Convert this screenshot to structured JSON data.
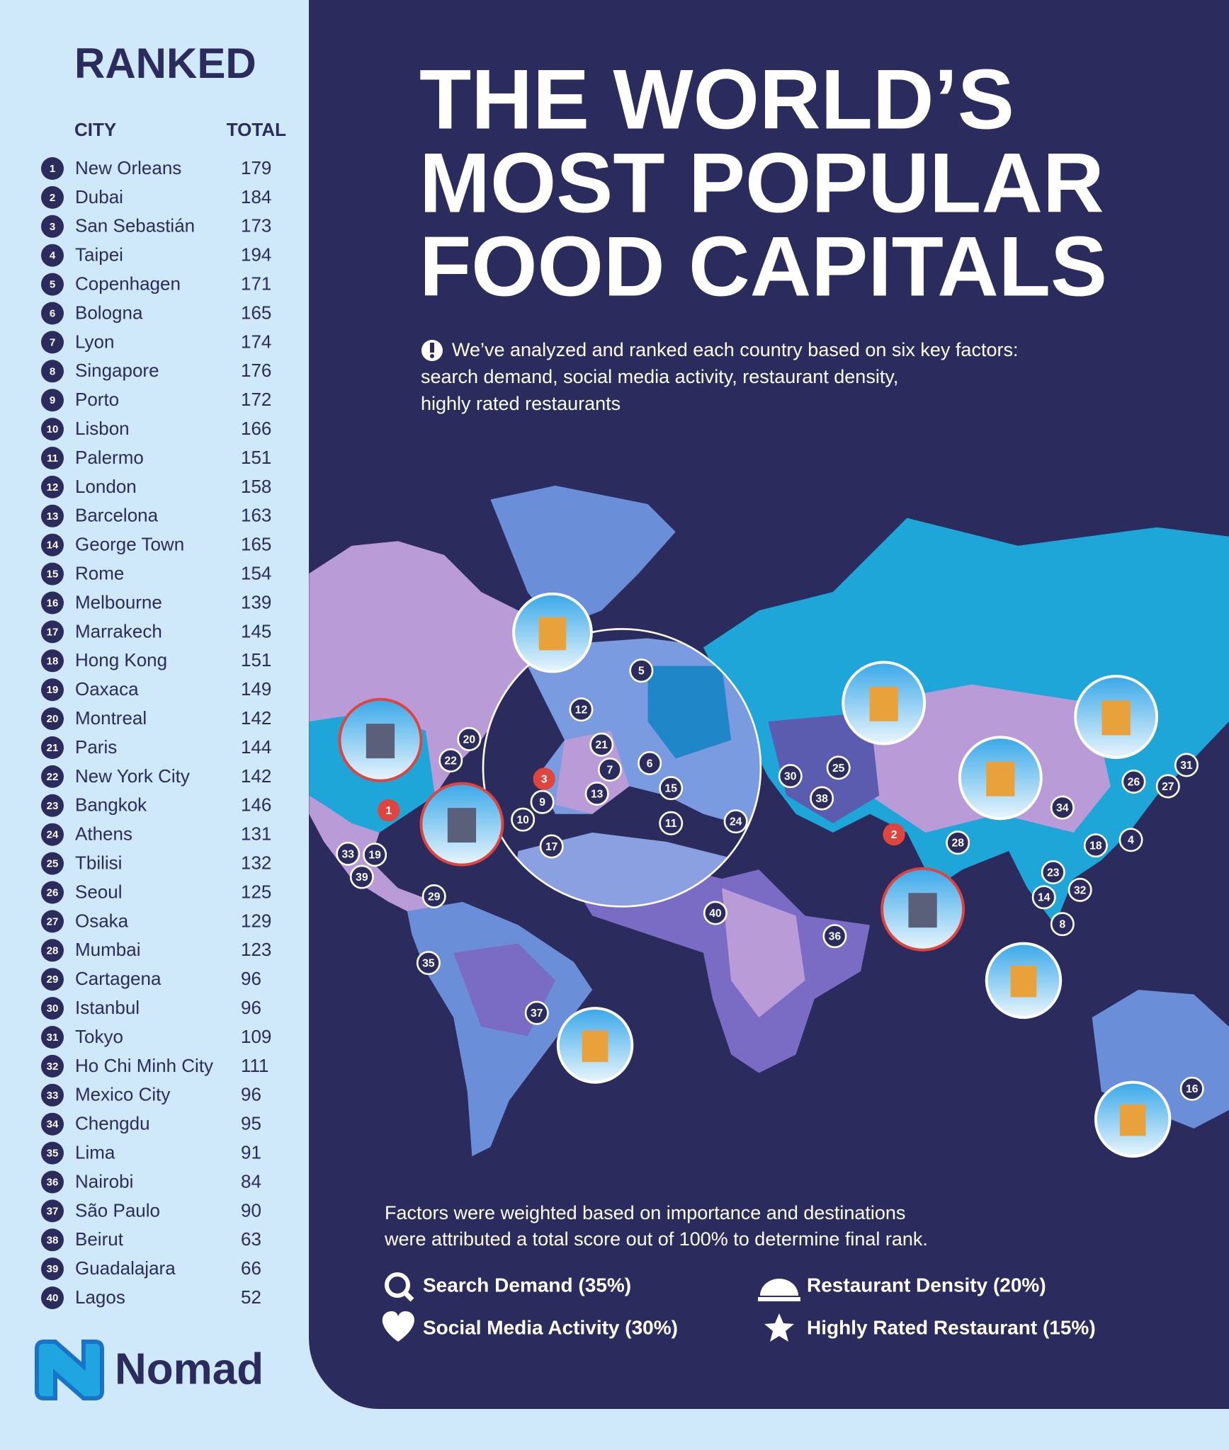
{
  "sidebar": {
    "heading": "RANKED",
    "columns": [
      "CITY",
      "TOTAL"
    ],
    "rows": [
      {
        "rank": 1,
        "city": "New Orleans",
        "total": 179
      },
      {
        "rank": 2,
        "city": "Dubai",
        "total": 184
      },
      {
        "rank": 3,
        "city": "San Sebastián",
        "total": 173
      },
      {
        "rank": 4,
        "city": "Taipei",
        "total": 194
      },
      {
        "rank": 5,
        "city": "Copenhagen",
        "total": 171
      },
      {
        "rank": 6,
        "city": "Bologna",
        "total": 165
      },
      {
        "rank": 7,
        "city": "Lyon",
        "total": 174
      },
      {
        "rank": 8,
        "city": "Singapore",
        "total": 176
      },
      {
        "rank": 9,
        "city": "Porto",
        "total": 172
      },
      {
        "rank": 10,
        "city": "Lisbon",
        "total": 166
      },
      {
        "rank": 11,
        "city": "Palermo",
        "total": 151
      },
      {
        "rank": 12,
        "city": "London",
        "total": 158
      },
      {
        "rank": 13,
        "city": "Barcelona",
        "total": 163
      },
      {
        "rank": 14,
        "city": "George Town",
        "total": 165
      },
      {
        "rank": 15,
        "city": "Rome",
        "total": 154
      },
      {
        "rank": 16,
        "city": "Melbourne",
        "total": 139
      },
      {
        "rank": 17,
        "city": "Marrakech",
        "total": 145
      },
      {
        "rank": 18,
        "city": "Hong Kong",
        "total": 151
      },
      {
        "rank": 19,
        "city": "Oaxaca",
        "total": 149
      },
      {
        "rank": 20,
        "city": "Montreal",
        "total": 142
      },
      {
        "rank": 21,
        "city": "Paris",
        "total": 144
      },
      {
        "rank": 22,
        "city": "New York City",
        "total": 142
      },
      {
        "rank": 23,
        "city": "Bangkok",
        "total": 146
      },
      {
        "rank": 24,
        "city": "Athens",
        "total": 131
      },
      {
        "rank": 25,
        "city": "Tbilisi",
        "total": 132
      },
      {
        "rank": 26,
        "city": "Seoul",
        "total": 125
      },
      {
        "rank": 27,
        "city": "Osaka",
        "total": 129
      },
      {
        "rank": 28,
        "city": "Mumbai",
        "total": 123
      },
      {
        "rank": 29,
        "city": "Cartagena",
        "total": 96
      },
      {
        "rank": 30,
        "city": "Istanbul",
        "total": 96
      },
      {
        "rank": 31,
        "city": "Tokyo",
        "total": 109
      },
      {
        "rank": 32,
        "city": "Ho Chi Minh City",
        "total": 111
      },
      {
        "rank": 33,
        "city": "Mexico City",
        "total": 96
      },
      {
        "rank": 34,
        "city": "Chengdu",
        "total": 95
      },
      {
        "rank": 35,
        "city": "Lima",
        "total": 91
      },
      {
        "rank": 36,
        "city": "Nairobi",
        "total": 84
      },
      {
        "rank": 37,
        "city": "São Paulo",
        "total": 90
      },
      {
        "rank": 38,
        "city": "Beirut",
        "total": 63
      },
      {
        "rank": 39,
        "city": "Guadalajara",
        "total": 66
      },
      {
        "rank": 40,
        "city": "Lagos",
        "total": 52
      }
    ]
  },
  "brand": "Nomad",
  "title": [
    "THE WORLD’S",
    "MOST POPULAR",
    "FOOD CAPITALS"
  ],
  "description": [
    "We’ve analyzed and ranked each country based on six key factors:",
    "search demand, social media activity, restaurant density,",
    "highly rated restaurants"
  ],
  "methodology": [
    "Factors were weighted based on importance and destinations",
    "were attributed a total score out of 100% to determine final rank."
  ],
  "factors": [
    "Search Demand (35%)",
    "Restaurant Density (20%)",
    "Social Media Activity (30%)",
    "Highly Rated Restaurant (15%)"
  ]
}
